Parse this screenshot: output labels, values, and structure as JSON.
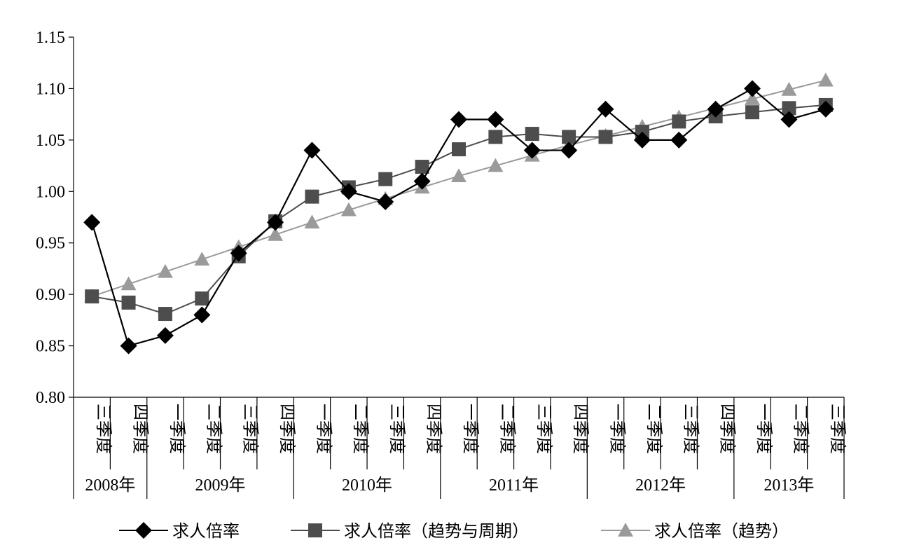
{
  "chart_data": {
    "type": "line",
    "ylim": [
      0.8,
      1.15
    ],
    "yticks": [
      "0.80",
      "0.85",
      "0.90",
      "0.95",
      "1.00",
      "1.05",
      "1.10",
      "1.15"
    ],
    "grid": false,
    "legend_position": "bottom",
    "categories": [
      "三季度",
      "四季度",
      "一季度",
      "二季度",
      "三季度",
      "四季度",
      "一季度",
      "二季度",
      "三季度",
      "四季度",
      "一季度",
      "二季度",
      "三季度",
      "四季度",
      "一季度",
      "二季度",
      "三季度",
      "四季度",
      "一季度",
      "二季度",
      "三季度"
    ],
    "year_groups": [
      {
        "label": "2008年",
        "count": 2
      },
      {
        "label": "2009年",
        "count": 4
      },
      {
        "label": "2010年",
        "count": 4
      },
      {
        "label": "2011年",
        "count": 4
      },
      {
        "label": "2012年",
        "count": 4
      },
      {
        "label": "2013年",
        "count": 3
      }
    ],
    "series": [
      {
        "name": "求人倍率",
        "marker": "diamond",
        "color": "#000000",
        "values": [
          0.97,
          0.85,
          0.86,
          0.88,
          0.94,
          0.97,
          1.04,
          1.0,
          0.99,
          1.01,
          1.07,
          1.07,
          1.04,
          1.04,
          1.08,
          1.05,
          1.05,
          1.08,
          1.1,
          1.07,
          1.08
        ]
      },
      {
        "name": "求人倍率（趋势与周期）",
        "marker": "square",
        "color": "#4d4d4d",
        "values": [
          0.898,
          0.892,
          0.881,
          0.896,
          0.937,
          0.971,
          0.995,
          1.004,
          1.012,
          1.024,
          1.041,
          1.053,
          1.056,
          1.053,
          1.053,
          1.058,
          1.068,
          1.073,
          1.077,
          1.081,
          1.084
        ]
      },
      {
        "name": "求人倍率（趋势）",
        "marker": "triangle",
        "color": "#9a9a9a",
        "values": [
          0.898,
          0.91,
          0.922,
          0.934,
          0.946,
          0.958,
          0.97,
          0.982,
          0.993,
          1.004,
          1.015,
          1.025,
          1.035,
          1.045,
          1.054,
          1.063,
          1.072,
          1.081,
          1.09,
          1.099,
          1.108
        ]
      }
    ]
  }
}
